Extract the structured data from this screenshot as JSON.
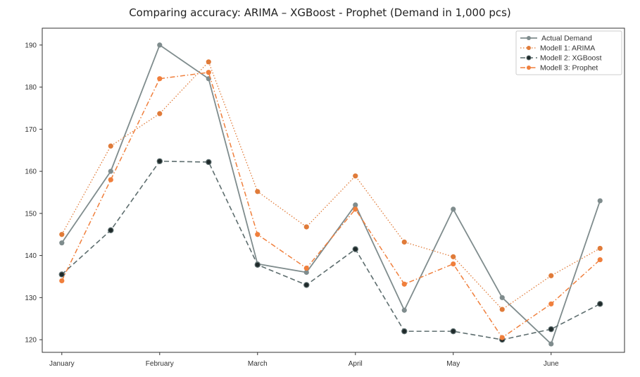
{
  "chart_data": {
    "type": "line",
    "title": "Comparing accuracy: ARIMA – XGBoost - Prophet (Demand in 1,000 pcs)",
    "xlabel": "",
    "ylabel": "",
    "x_tick_labels": [
      "January",
      "February",
      "March",
      "April",
      "May",
      "June"
    ],
    "x_tick_positions": [
      0,
      2,
      4,
      6,
      8,
      10
    ],
    "x": [
      0,
      1,
      2,
      3,
      4,
      5,
      6,
      7,
      8,
      9,
      10,
      11
    ],
    "xlim": [
      -0.4,
      11.5
    ],
    "ylim": [
      117,
      194
    ],
    "y_ticks": [
      120,
      130,
      140,
      150,
      160,
      170,
      180,
      190
    ],
    "grid": false,
    "legend_position": "top-right",
    "series": [
      {
        "name": "Actual Demand",
        "color": "#7f8c8d",
        "style": "solid",
        "values": [
          143,
          160,
          190,
          182,
          138,
          136,
          152,
          127,
          151,
          130,
          119,
          153
        ]
      },
      {
        "name": "Modell 1: ARIMA",
        "color": "#e07b39",
        "style": "dotted",
        "values": [
          145,
          166,
          173.7,
          186,
          155.2,
          146.8,
          158.9,
          143.2,
          139.7,
          127.2,
          135.2,
          141.7
        ]
      },
      {
        "name": "Modell 2: XGBoost",
        "color": "#5d6d6e",
        "style": "dashed",
        "values": [
          135.5,
          146,
          162.4,
          162.2,
          137.8,
          133,
          141.5,
          122,
          122,
          120,
          122.5,
          128.5
        ]
      },
      {
        "name": "Modell 3: Prophet",
        "color": "#f07f3c",
        "style": "dashdot",
        "values": [
          134,
          158,
          182,
          183.5,
          145,
          137,
          151,
          133.2,
          138,
          120.5,
          128.5,
          139
        ]
      }
    ]
  }
}
